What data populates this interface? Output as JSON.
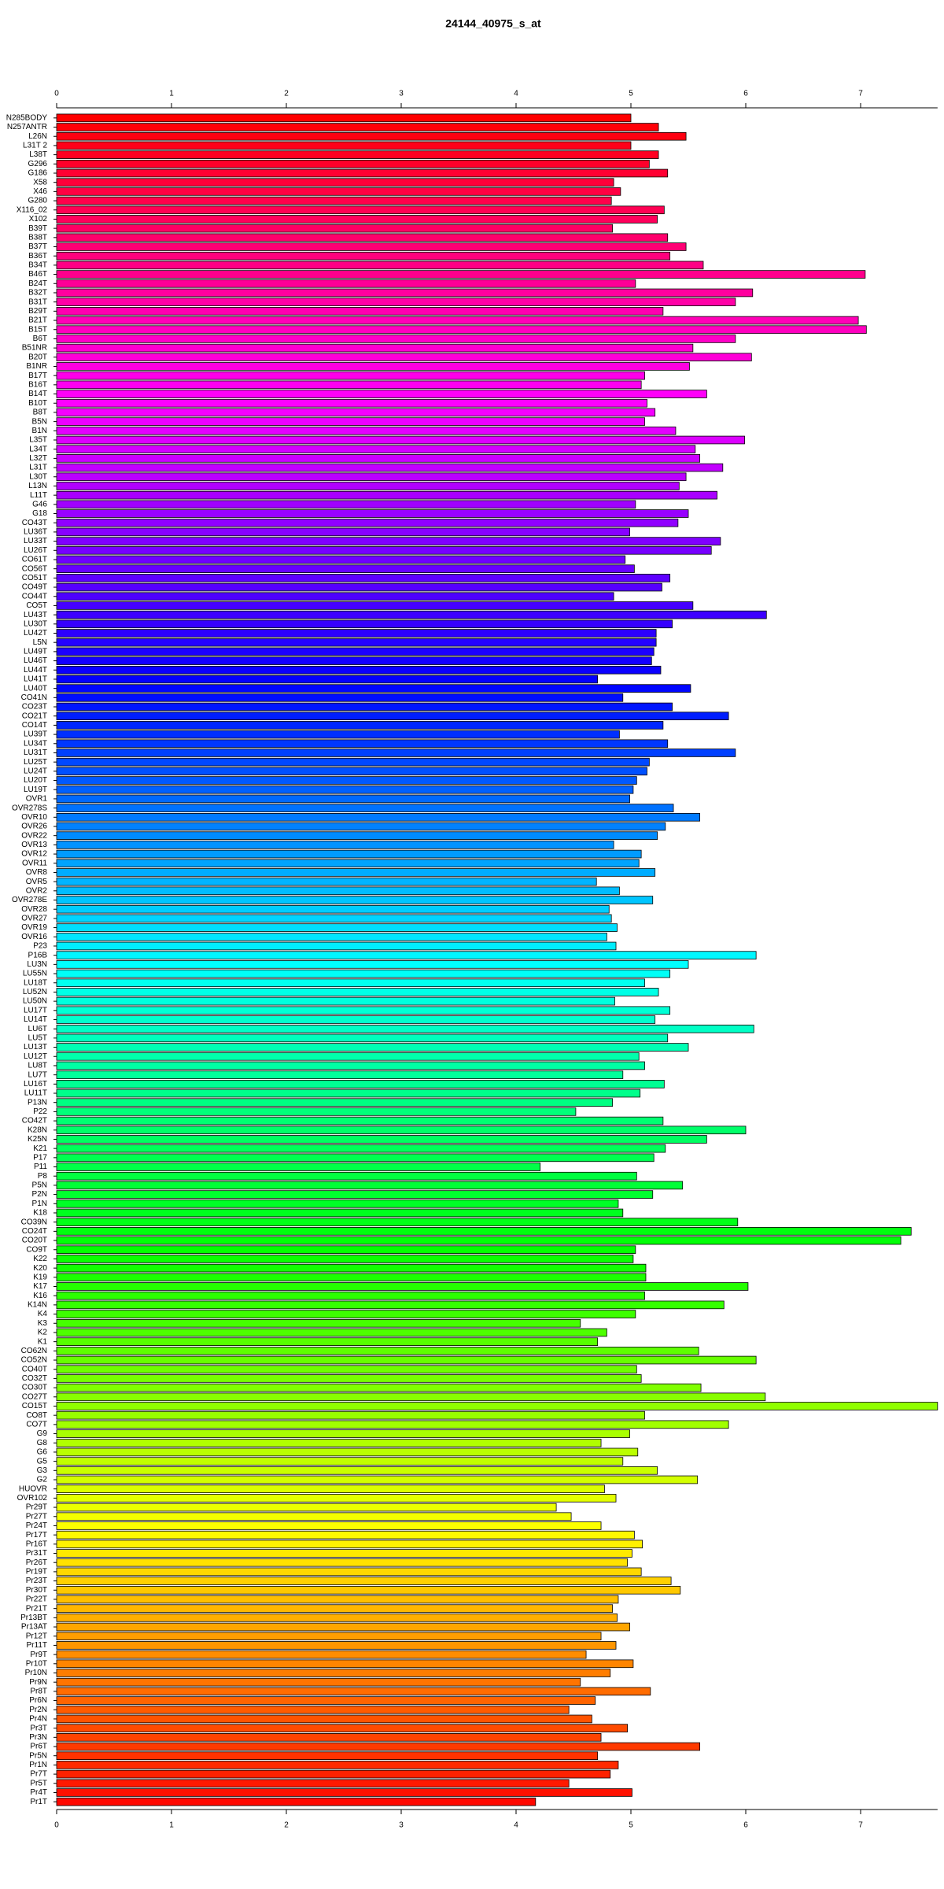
{
  "chart_data": {
    "type": "barh",
    "title": "24144_40975_s_at",
    "categories": [
      "N285BODY",
      "N257ANTR",
      "L26N",
      "L31T 2",
      "L38T",
      "G296",
      "G186",
      "X58",
      "X46",
      "G280",
      "X116_02",
      "X102",
      "B39T",
      "B38T",
      "B37T",
      "B36T",
      "B34T",
      "B46T",
      "B24T",
      "B32T",
      "B31T",
      "B29T",
      "B21T",
      "B15T",
      "B6T",
      "B51NR",
      "B20T",
      "B1NR",
      "B17T",
      "B16T",
      "B14T",
      "B10T",
      "B8T",
      "B5N",
      "B1N",
      "L35T",
      "L34T",
      "L32T",
      "L31T",
      "L30T",
      "L13N",
      "L11T",
      "G46",
      "G18",
      "CO43T",
      "LU36T",
      "LU33T",
      "LU26T",
      "CO61T",
      "CO56T",
      "CO51T",
      "CO49T",
      "CO44T",
      "CO5T",
      "LU43T",
      "LU30T",
      "LU42T",
      "L5N",
      "LU49T",
      "LU46T",
      "LU44T",
      "LU41T",
      "LU40T",
      "CO41N",
      "CO23T",
      "CO21T",
      "CO14T",
      "LU39T",
      "LU34T",
      "LU31T",
      "LU25T",
      "LU24T",
      "LU20T",
      "LU19T",
      "OVR1",
      "OVR278S",
      "OVR10",
      "OVR26",
      "OVR22",
      "OVR13",
      "OVR12",
      "OVR11",
      "OVR8",
      "OVR5",
      "OVR2",
      "OVR278E",
      "OVR28",
      "OVR27",
      "OVR19",
      "OVR16",
      "P23",
      "P16B",
      "LU3N",
      "LU55N",
      "LU18T",
      "LU52N",
      "LU50N",
      "LU17T",
      "LU14T",
      "LU6T",
      "LU5T",
      "LU13T",
      "LU12T",
      "LU8T",
      "LU7T",
      "LU16T",
      "LU11T",
      "P13N",
      "P22",
      "CO42T",
      "K28N",
      "K25N",
      "K21",
      "P17",
      "P11",
      "P8",
      "P5N",
      "P2N",
      "P1N",
      "K18",
      "CO39N",
      "CO24T",
      "CO20T",
      "CO9T",
      "K22",
      "K20",
      "K19",
      "K17",
      "K16",
      "K14N",
      "K4",
      "K3",
      "K2",
      "K1",
      "CO62N",
      "CO52N",
      "CO40T",
      "CO32T",
      "CO30T",
      "CO27T",
      "CO15T",
      "CO8T",
      "CO7T",
      "G9",
      "G8",
      "G6",
      "G5",
      "G3",
      "G2",
      "HUOVR",
      "OVR102",
      "Pr29T",
      "Pr27T",
      "Pr24T",
      "Pr17T",
      "Pr16T",
      "Pr31T",
      "Pr26T",
      "Pr19T",
      "Pr23T",
      "Pr30T",
      "Pr22T",
      "Pr21T",
      "Pr13BT",
      "Pr13AT",
      "Pr12T",
      "Pr11T",
      "Pr9T",
      "Pr10T",
      "Pr10N",
      "Pr9N",
      "Pr8T",
      "Pr6N",
      "Pr2N",
      "Pr4N",
      "Pr3T",
      "Pr3N",
      "Pr6T",
      "Pr5N",
      "Pr1N",
      "Pr7T",
      "Pr5T",
      "Pr4T",
      "Pr1T"
    ],
    "values": [
      5.0,
      5.24,
      5.48,
      5.0,
      5.24,
      5.16,
      5.32,
      4.85,
      4.91,
      4.83,
      5.29,
      5.23,
      4.84,
      5.32,
      5.48,
      5.34,
      5.63,
      7.04,
      5.04,
      6.06,
      5.91,
      5.28,
      6.98,
      7.05,
      5.91,
      5.54,
      6.05,
      5.51,
      5.12,
      5.09,
      5.66,
      5.14,
      5.21,
      5.12,
      5.39,
      5.99,
      5.56,
      5.6,
      5.8,
      5.48,
      5.42,
      5.75,
      5.04,
      5.5,
      5.41,
      4.99,
      5.78,
      5.7,
      4.95,
      5.03,
      5.34,
      5.27,
      4.85,
      5.54,
      6.18,
      5.36,
      5.22,
      5.22,
      5.2,
      5.18,
      5.26,
      4.71,
      5.52,
      4.93,
      5.36,
      5.85,
      5.28,
      4.9,
      5.32,
      5.91,
      5.16,
      5.14,
      5.05,
      5.02,
      4.99,
      5.37,
      5.6,
      5.3,
      5.23,
      4.85,
      5.09,
      5.07,
      5.21,
      4.7,
      4.9,
      5.19,
      4.81,
      4.83,
      4.88,
      4.79,
      4.87,
      6.09,
      5.5,
      5.34,
      5.12,
      5.24,
      4.86,
      5.34,
      5.21,
      6.07,
      5.32,
      5.5,
      5.07,
      5.12,
      4.93,
      5.29,
      5.08,
      4.84,
      4.52,
      5.28,
      6.0,
      5.66,
      5.3,
      5.2,
      4.21,
      5.05,
      5.45,
      5.19,
      4.89,
      4.93,
      5.93,
      7.44,
      7.35,
      5.04,
      5.02,
      5.13,
      5.13,
      6.02,
      5.12,
      5.81,
      5.04,
      4.56,
      4.79,
      4.71,
      5.59,
      6.09,
      5.05,
      5.09,
      5.61,
      6.17,
      7.67,
      5.12,
      5.85,
      4.99,
      4.74,
      5.06,
      4.93,
      5.23,
      5.58,
      4.77,
      4.87,
      4.35,
      4.48,
      4.74,
      5.03,
      5.1,
      5.01,
      4.97,
      5.09,
      5.35,
      5.43,
      4.89,
      4.84,
      4.88,
      4.99,
      4.74,
      4.87,
      4.61,
      5.02,
      4.82,
      4.56,
      5.17,
      4.69,
      4.46,
      4.66,
      4.97,
      4.74,
      5.6,
      4.71,
      4.89,
      4.82,
      4.46,
      5.01,
      4.17
    ],
    "color_scale": "rainbow",
    "xlim": [
      0,
      7.67
    ],
    "xticks": [
      0,
      1,
      2,
      3,
      4,
      5,
      6,
      7
    ]
  }
}
